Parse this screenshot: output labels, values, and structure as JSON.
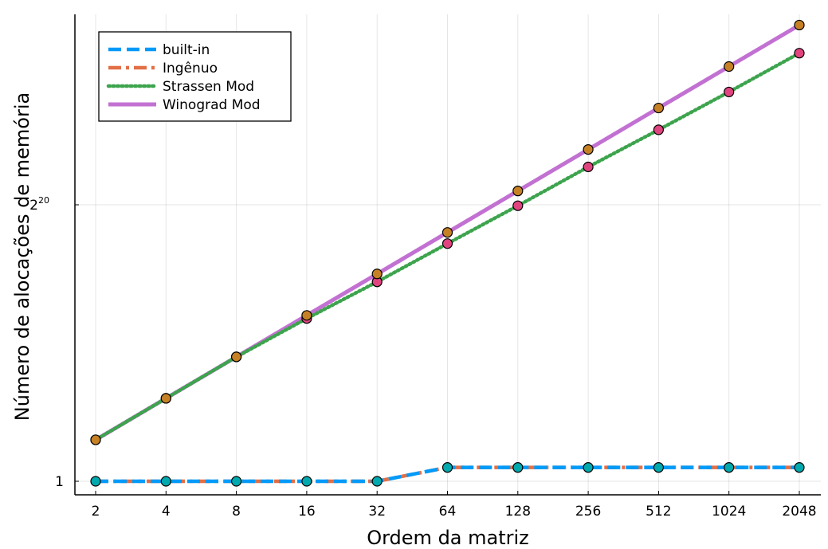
{
  "chart_data": {
    "type": "line",
    "xlabel": "Ordem da matriz",
    "ylabel": "Número de alocações de memória",
    "x_scale": "log2",
    "y_scale": "log2",
    "x": [
      2,
      4,
      8,
      16,
      32,
      64,
      128,
      256,
      512,
      1024,
      2048
    ],
    "x_tick_labels": [
      "2",
      "4",
      "8",
      "16",
      "32",
      "64",
      "128",
      "256",
      "512",
      "1024",
      "2048"
    ],
    "y_ticks": [
      {
        "value": 1,
        "label_base": "1",
        "label_exp": ""
      },
      {
        "value": 1048576,
        "label_base": "2",
        "label_exp": "20"
      }
    ],
    "xlim": [
      1.8,
      2300
    ],
    "ylim": [
      0.5,
      1100000000000.0
    ],
    "grid": true,
    "legend_position": "top-left",
    "series": [
      {
        "name": "built-in",
        "color": "#009af9",
        "line": "dashed",
        "marker_color": "#00a9ad",
        "values": [
          1,
          1,
          1,
          1,
          1,
          2,
          2,
          2,
          2,
          2,
          2
        ]
      },
      {
        "name": "Ingênuo",
        "color": "#e26f46",
        "line": "dashdot",
        "marker_color": "#00a9ad",
        "values": [
          1,
          1,
          1,
          1,
          1,
          2,
          2,
          2,
          2,
          2,
          2
        ]
      },
      {
        "name": "Strassen Mod",
        "color": "#3da44d",
        "line": "dotted",
        "marker_color": "#e0447f",
        "values": [
          8,
          64,
          512,
          3500,
          22000,
          150000,
          1000000,
          7000000,
          45000000,
          300000000,
          2100000000
        ]
      },
      {
        "name": "Winograd Mod",
        "color": "#c271d2",
        "line": "solid",
        "marker_color": "#c68125",
        "values": [
          8,
          64,
          512,
          4096,
          32768,
          262144,
          2097152,
          16777216,
          134217728,
          1073741824,
          8589934592
        ]
      }
    ]
  }
}
